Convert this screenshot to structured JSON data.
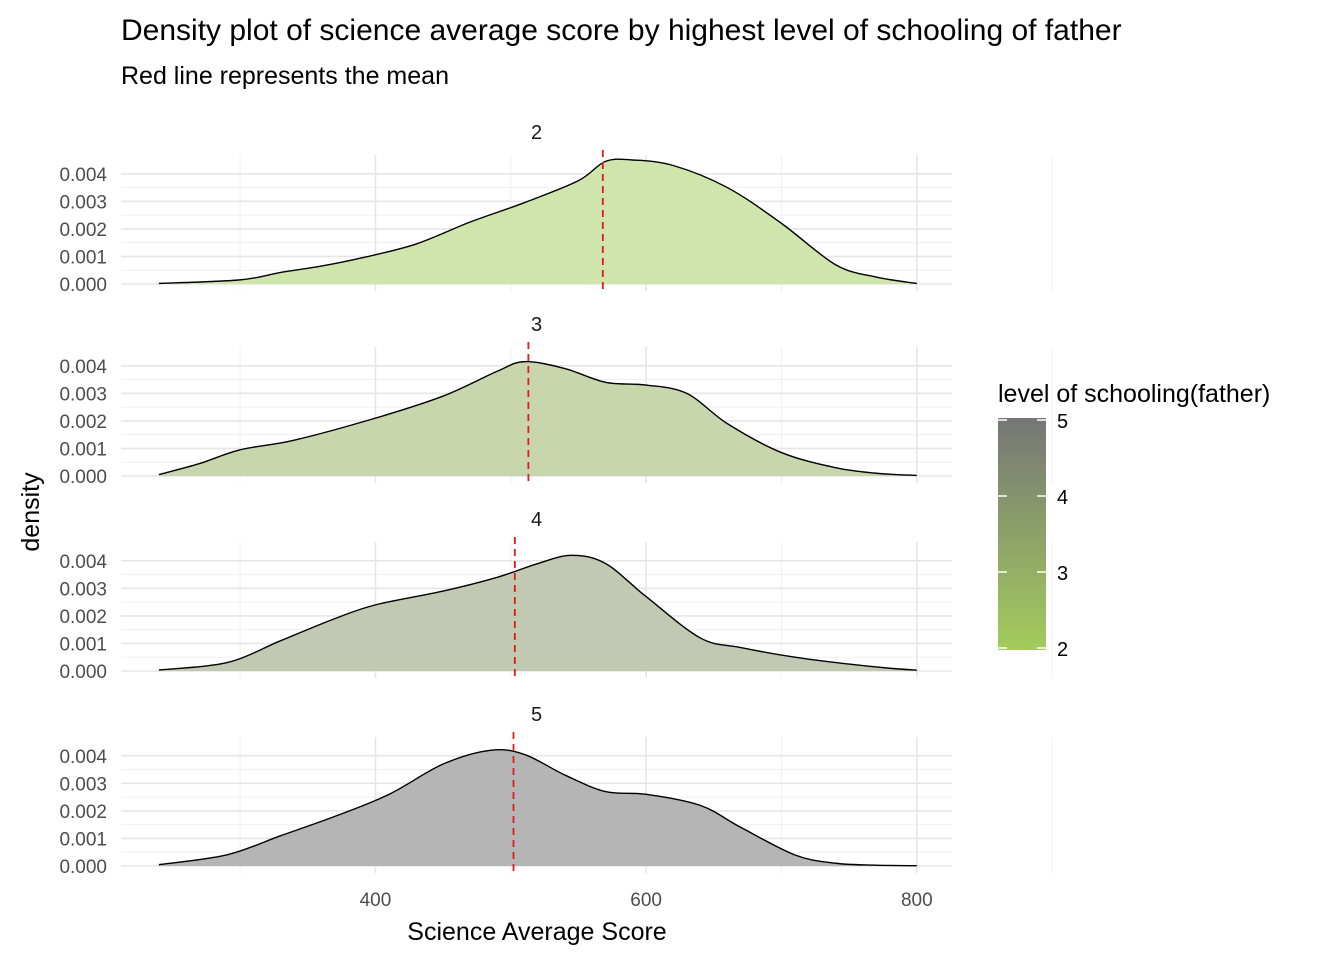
{
  "chart_data": {
    "type": "area",
    "title": "Density plot of science average score by highest level of schooling of father",
    "subtitle": "Red line represents the mean",
    "xlabel": "Science Average Score",
    "ylabel": "density",
    "xlim": [
      212,
      826
    ],
    "ylim": [
      0,
      0.0045
    ],
    "x_ticks": [
      400,
      600,
      800
    ],
    "x_tick_labels": [
      "400",
      "600",
      "800"
    ],
    "y_ticks": [
      0,
      0.001,
      0.002,
      0.003,
      0.004
    ],
    "y_tick_labels": [
      "0.000",
      "0.001",
      "0.002",
      "0.003",
      "0.004"
    ],
    "grid": true,
    "mean_line_color": "#e31a1c",
    "facets": [
      {
        "label": "2",
        "fill": "#cfe5ab",
        "mean": 568,
        "x": [
          240,
          300,
          330,
          360,
          390,
          430,
          470,
          510,
          550,
          570,
          590,
          620,
          660,
          700,
          740,
          770,
          800
        ],
        "y": [
          2e-05,
          0.00015,
          0.00042,
          0.00065,
          0.00095,
          0.00145,
          0.00225,
          0.00295,
          0.00375,
          0.00445,
          0.0045,
          0.0043,
          0.0035,
          0.0022,
          0.0007,
          0.00025,
          2e-05
        ]
      },
      {
        "label": "3",
        "fill": "#c8d6ad",
        "mean": 513,
        "x": [
          240,
          270,
          300,
          340,
          400,
          450,
          490,
          510,
          540,
          570,
          600,
          630,
          660,
          700,
          740,
          770,
          800
        ],
        "y": [
          5e-05,
          0.00045,
          0.00095,
          0.0013,
          0.0021,
          0.0029,
          0.0038,
          0.00415,
          0.0039,
          0.0034,
          0.0033,
          0.003,
          0.0019,
          0.00085,
          0.0003,
          0.0001,
          2e-05
        ]
      },
      {
        "label": "4",
        "fill": "#c2c9b2",
        "mean": 503,
        "x": [
          240,
          290,
          330,
          370,
          400,
          450,
          490,
          520,
          545,
          570,
          600,
          640,
          670,
          710,
          750,
          780,
          800
        ],
        "y": [
          4e-05,
          0.0003,
          0.0011,
          0.0019,
          0.0024,
          0.0029,
          0.0034,
          0.0039,
          0.0042,
          0.0039,
          0.0027,
          0.0012,
          0.00085,
          0.0005,
          0.00025,
          0.0001,
          3e-05
        ]
      },
      {
        "label": "5",
        "fill": "#b5b5b5",
        "mean": 502,
        "x": [
          240,
          290,
          330,
          370,
          410,
          450,
          485,
          510,
          540,
          570,
          600,
          640,
          670,
          710,
          740,
          770,
          800
        ],
        "y": [
          5e-05,
          0.0004,
          0.0011,
          0.0018,
          0.0026,
          0.0037,
          0.0042,
          0.00405,
          0.0033,
          0.0027,
          0.0026,
          0.0022,
          0.0014,
          0.0004,
          0.0001,
          3e-05,
          1e-05
        ]
      }
    ],
    "legend": {
      "title": "level of schooling(father)",
      "position": "right",
      "breaks": [
        "2",
        "3",
        "4",
        "5"
      ],
      "color_low": "#a3cc5c",
      "color_high": "#767676"
    }
  }
}
